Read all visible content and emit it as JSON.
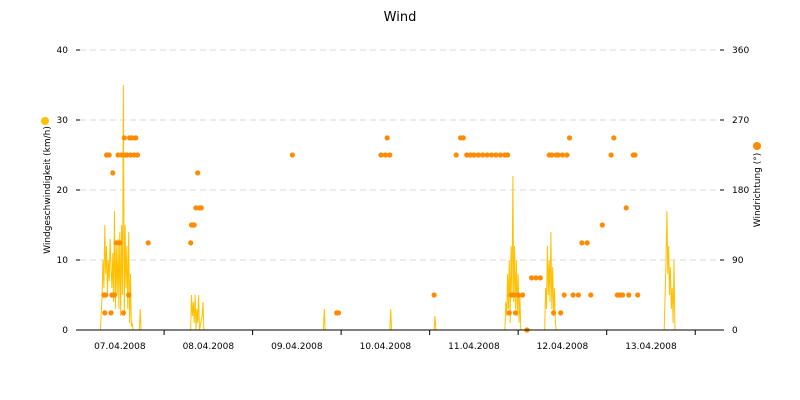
{
  "chart_data": {
    "type": "line",
    "title": "Wind",
    "ylabel_left": "Windgeschwindigkeit (km/h)",
    "ylabel_right": "Windrichtung (°)",
    "ylim_left": [
      0,
      40
    ],
    "yticks_left": [
      "0",
      "10",
      "20",
      "30",
      "40"
    ],
    "ylim_right": [
      0,
      360
    ],
    "yticks_right": [
      "0",
      "90",
      "180",
      "270",
      "360"
    ],
    "xlim_days": [
      6.55,
      13.78
    ],
    "x_ticks": [
      {
        "day": 7.0,
        "label": "07.04.2008"
      },
      {
        "day": 8.0,
        "label": "08.04.2008"
      },
      {
        "day": 9.0,
        "label": "09.04.2008"
      },
      {
        "day": 10.0,
        "label": "10.04.2008"
      },
      {
        "day": 11.0,
        "label": "11.04.2008"
      },
      {
        "day": 12.0,
        "label": "12.04.2008"
      },
      {
        "day": 13.0,
        "label": "13.04.2008"
      }
    ],
    "grid": "horizontal-dashed",
    "colors": {
      "speed": "#ffc000",
      "direction": "#ff8c00",
      "grid": "#d9d9d9"
    },
    "series": [
      {
        "name": "Windgeschwindigkeit (km/h)",
        "axis": "left",
        "style": "line",
        "points": [
          [
            6.78,
            0
          ],
          [
            6.8,
            5
          ],
          [
            6.81,
            10
          ],
          [
            6.82,
            6
          ],
          [
            6.83,
            15
          ],
          [
            6.84,
            8
          ],
          [
            6.85,
            12
          ],
          [
            6.86,
            5
          ],
          [
            6.87,
            10
          ],
          [
            6.88,
            7
          ],
          [
            6.89,
            13
          ],
          [
            6.9,
            9
          ],
          [
            6.91,
            6
          ],
          [
            6.92,
            11
          ],
          [
            6.93,
            4
          ],
          [
            6.94,
            17
          ],
          [
            6.95,
            3
          ],
          [
            6.96,
            12
          ],
          [
            6.97,
            5
          ],
          [
            6.98,
            13
          ],
          [
            6.99,
            3
          ],
          [
            7.0,
            14
          ],
          [
            7.01,
            2
          ],
          [
            7.02,
            15
          ],
          [
            7.03,
            5
          ],
          [
            7.04,
            35
          ],
          [
            7.05,
            2
          ],
          [
            7.06,
            15
          ],
          [
            7.07,
            6
          ],
          [
            7.08,
            12
          ],
          [
            7.09,
            3
          ],
          [
            7.1,
            14
          ],
          [
            7.11,
            1
          ],
          [
            7.12,
            8
          ],
          [
            7.13,
            0.5
          ],
          [
            7.14,
            1
          ],
          [
            7.15,
            0
          ],
          [
            7.22,
            0
          ],
          [
            7.23,
            3
          ],
          [
            7.24,
            0
          ],
          [
            7.8,
            0
          ],
          [
            7.81,
            5
          ],
          [
            7.82,
            2
          ],
          [
            7.83,
            4
          ],
          [
            7.84,
            1
          ],
          [
            7.85,
            5
          ],
          [
            7.86,
            0
          ],
          [
            7.87,
            3
          ],
          [
            7.88,
            1
          ],
          [
            7.89,
            5
          ],
          [
            7.9,
            0
          ],
          [
            7.93,
            2
          ],
          [
            7.94,
            4
          ],
          [
            7.95,
            0
          ],
          [
            9.3,
            0
          ],
          [
            9.31,
            3
          ],
          [
            9.32,
            0
          ],
          [
            10.05,
            0
          ],
          [
            10.06,
            3
          ],
          [
            10.07,
            0
          ],
          [
            10.55,
            0
          ],
          [
            10.56,
            2
          ],
          [
            10.57,
            0
          ],
          [
            11.35,
            0
          ],
          [
            11.36,
            4
          ],
          [
            11.37,
            2
          ],
          [
            11.38,
            8
          ],
          [
            11.39,
            3
          ],
          [
            11.4,
            10
          ],
          [
            11.41,
            1
          ],
          [
            11.42,
            12
          ],
          [
            11.43,
            5
          ],
          [
            11.44,
            22
          ],
          [
            11.45,
            4
          ],
          [
            11.46,
            12
          ],
          [
            11.47,
            3
          ],
          [
            11.48,
            10
          ],
          [
            11.49,
            2
          ],
          [
            11.5,
            8
          ],
          [
            11.51,
            1
          ],
          [
            11.52,
            5
          ],
          [
            11.53,
            0
          ],
          [
            11.8,
            0
          ],
          [
            11.81,
            6
          ],
          [
            11.82,
            3
          ],
          [
            11.83,
            12
          ],
          [
            11.84,
            5
          ],
          [
            11.85,
            10
          ],
          [
            11.86,
            4
          ],
          [
            11.87,
            14
          ],
          [
            11.88,
            3
          ],
          [
            11.89,
            9
          ],
          [
            11.9,
            2
          ],
          [
            11.91,
            6
          ],
          [
            11.92,
            1
          ],
          [
            11.93,
            0
          ],
          [
            13.15,
            0
          ],
          [
            13.16,
            5
          ],
          [
            13.17,
            10
          ],
          [
            13.18,
            17
          ],
          [
            13.19,
            8
          ],
          [
            13.2,
            12
          ],
          [
            13.21,
            5
          ],
          [
            13.22,
            9
          ],
          [
            13.23,
            3
          ],
          [
            13.24,
            6
          ],
          [
            13.25,
            1
          ],
          [
            13.26,
            10
          ],
          [
            13.27,
            0
          ]
        ]
      },
      {
        "name": "Windrichtung (°)",
        "axis": "right",
        "style": "scatter",
        "points": [
          [
            6.82,
            45
          ],
          [
            6.83,
            22
          ],
          [
            6.84,
            45
          ],
          [
            6.85,
            225
          ],
          [
            6.86,
            225
          ],
          [
            6.88,
            225
          ],
          [
            6.9,
            22
          ],
          [
            6.91,
            45
          ],
          [
            6.92,
            202
          ],
          [
            6.94,
            45
          ],
          [
            6.96,
            112
          ],
          [
            6.98,
            225
          ],
          [
            7.0,
            112
          ],
          [
            7.02,
            225
          ],
          [
            7.04,
            22
          ],
          [
            7.05,
            247
          ],
          [
            7.06,
            225
          ],
          [
            7.08,
            225
          ],
          [
            7.1,
            45
          ],
          [
            7.11,
            247
          ],
          [
            7.12,
            225
          ],
          [
            7.14,
            247
          ],
          [
            7.16,
            225
          ],
          [
            7.18,
            247
          ],
          [
            7.2,
            225
          ],
          [
            7.32,
            112
          ],
          [
            7.8,
            112
          ],
          [
            7.81,
            135
          ],
          [
            7.83,
            135
          ],
          [
            7.84,
            135
          ],
          [
            7.86,
            157
          ],
          [
            7.88,
            202
          ],
          [
            7.9,
            157
          ],
          [
            7.92,
            157
          ],
          [
            8.95,
            225
          ],
          [
            9.45,
            22
          ],
          [
            9.47,
            22
          ],
          [
            9.95,
            225
          ],
          [
            10.0,
            225
          ],
          [
            10.02,
            247
          ],
          [
            10.05,
            225
          ],
          [
            10.55,
            45
          ],
          [
            10.8,
            225
          ],
          [
            10.85,
            247
          ],
          [
            10.88,
            247
          ],
          [
            10.92,
            225
          ],
          [
            10.96,
            225
          ],
          [
            11.0,
            225
          ],
          [
            11.05,
            225
          ],
          [
            11.1,
            225
          ],
          [
            11.15,
            225
          ],
          [
            11.2,
            225
          ],
          [
            11.25,
            225
          ],
          [
            11.3,
            225
          ],
          [
            11.35,
            225
          ],
          [
            11.38,
            225
          ],
          [
            11.4,
            22
          ],
          [
            11.42,
            45
          ],
          [
            11.45,
            45
          ],
          [
            11.47,
            22
          ],
          [
            11.5,
            45
          ],
          [
            11.55,
            45
          ],
          [
            11.6,
            0
          ],
          [
            11.65,
            67
          ],
          [
            11.7,
            67
          ],
          [
            11.75,
            67
          ],
          [
            11.85,
            225
          ],
          [
            11.88,
            225
          ],
          [
            11.9,
            22
          ],
          [
            11.93,
            225
          ],
          [
            11.95,
            225
          ],
          [
            11.98,
            22
          ],
          [
            12.0,
            225
          ],
          [
            12.02,
            45
          ],
          [
            12.05,
            225
          ],
          [
            12.08,
            247
          ],
          [
            12.12,
            45
          ],
          [
            12.18,
            45
          ],
          [
            12.22,
            112
          ],
          [
            12.28,
            112
          ],
          [
            12.32,
            45
          ],
          [
            12.45,
            135
          ],
          [
            12.55,
            225
          ],
          [
            12.58,
            247
          ],
          [
            12.62,
            45
          ],
          [
            12.65,
            45
          ],
          [
            12.68,
            45
          ],
          [
            12.72,
            157
          ],
          [
            12.75,
            45
          ],
          [
            12.8,
            225
          ],
          [
            12.82,
            225
          ],
          [
            12.85,
            45
          ]
        ]
      }
    ]
  }
}
